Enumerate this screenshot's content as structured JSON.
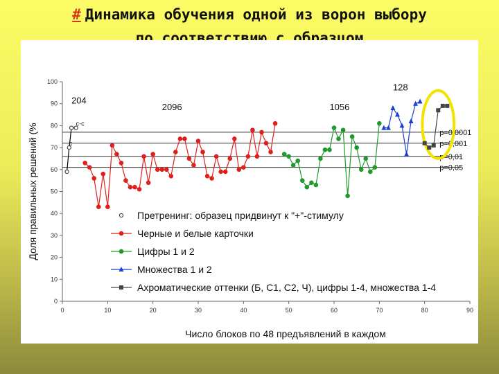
{
  "slide": {
    "title_hash": "#",
    "title_line1": "Динамика обучения одной из ворон выбору",
    "title_line2": "по соответствию с образцом"
  },
  "chart_data": {
    "type": "line",
    "xlabel": "Число блоков по 48 предъявлений в каждом",
    "ylabel": "Доля правильных решений (%",
    "xlim": [
      0,
      90
    ],
    "ylim": [
      0,
      100
    ],
    "xticks": [
      0,
      10,
      20,
      30,
      40,
      50,
      60,
      70,
      80,
      90
    ],
    "yticks": [
      0,
      10,
      20,
      30,
      40,
      50,
      60,
      70,
      80,
      90,
      100
    ],
    "grid": false,
    "legend_position": "center-bottom",
    "series": [
      {
        "name": "Претренинг: образец придвинут к \"+\"-стимулу",
        "marker": "open-circle",
        "color": "#000000",
        "x": [
          1,
          1.5,
          2,
          3
        ],
        "y": [
          59,
          70,
          79,
          79
        ]
      },
      {
        "name": "Черные и белые карточки",
        "marker": "circle",
        "color": "#e0201c",
        "x": [
          5,
          6,
          7,
          8,
          9,
          10,
          11,
          12,
          13,
          14,
          15,
          16,
          17,
          18,
          19,
          20,
          21,
          22,
          23,
          24,
          25,
          26,
          27,
          28,
          29,
          30,
          31,
          32,
          33,
          34,
          35,
          36,
          37,
          38,
          39,
          40,
          41,
          42,
          43,
          44,
          45,
          46,
          47
        ],
        "y": [
          63,
          61,
          56,
          43,
          58,
          43,
          71,
          67,
          63,
          55,
          52,
          52,
          51,
          66,
          54,
          67,
          60,
          60,
          60,
          57,
          68,
          74,
          74,
          65,
          62,
          73,
          68,
          57,
          56,
          66,
          59,
          59,
          65,
          74,
          60,
          61,
          66,
          78,
          66,
          77,
          72,
          68,
          81
        ]
      },
      {
        "name": "Цифры 1 и 2",
        "marker": "circle",
        "color": "#1f9a2c",
        "x": [
          49,
          50,
          51,
          52,
          53,
          54,
          55,
          56,
          57,
          58,
          59,
          60,
          61,
          62,
          63,
          64,
          65,
          66,
          67,
          68,
          69,
          70
        ],
        "y": [
          67,
          66,
          62,
          64,
          55,
          52,
          54,
          53,
          65,
          69,
          69,
          79,
          74,
          78,
          48,
          75,
          70,
          60,
          65,
          59,
          61,
          81
        ]
      },
      {
        "name": "Множества 1 и 2",
        "marker": "triangle",
        "color": "#1a3fd0",
        "x": [
          71,
          72,
          73,
          74,
          75,
          76,
          77,
          78,
          79
        ],
        "y": [
          79,
          79,
          88,
          85,
          80,
          67,
          82,
          90,
          91
        ]
      },
      {
        "name": "Ахроматические оттенки (Б, С1, С2, Ч), цифры 1-4, множества 1-4",
        "marker": "square",
        "color": "#444444",
        "x": [
          80,
          81,
          82,
          83,
          84,
          85
        ],
        "y": [
          72,
          70,
          71,
          87,
          89,
          89
        ]
      }
    ],
    "hlines": [
      {
        "y": 77,
        "label": "p=0,0001"
      },
      {
        "y": 72,
        "label": "p=0,001"
      },
      {
        "y": 66,
        "label": "p=0,01"
      },
      {
        "y": 61,
        "label": "p=0,05"
      }
    ],
    "annotations": [
      {
        "text": "204",
        "x": 2,
        "y": 90
      },
      {
        "text": "2096",
        "x": 22,
        "y": 87
      },
      {
        "text": "1056",
        "x": 59,
        "y": 87
      },
      {
        "text": "128",
        "x": 73,
        "y": 96
      },
      {
        "text": "с-с",
        "x": 3,
        "y": 80
      },
      {
        "text": "с",
        "x": 1.5,
        "y": 71
      }
    ],
    "highlight_ellipse": {
      "x_range": [
        79.5,
        86.5
      ],
      "y_range": [
        65,
        96
      ]
    }
  }
}
